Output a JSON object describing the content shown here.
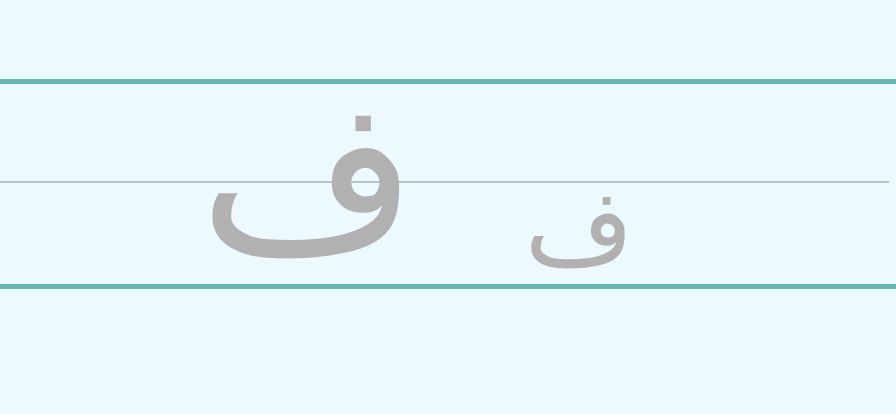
{
  "letters": {
    "large": "ف",
    "small": "ف"
  }
}
